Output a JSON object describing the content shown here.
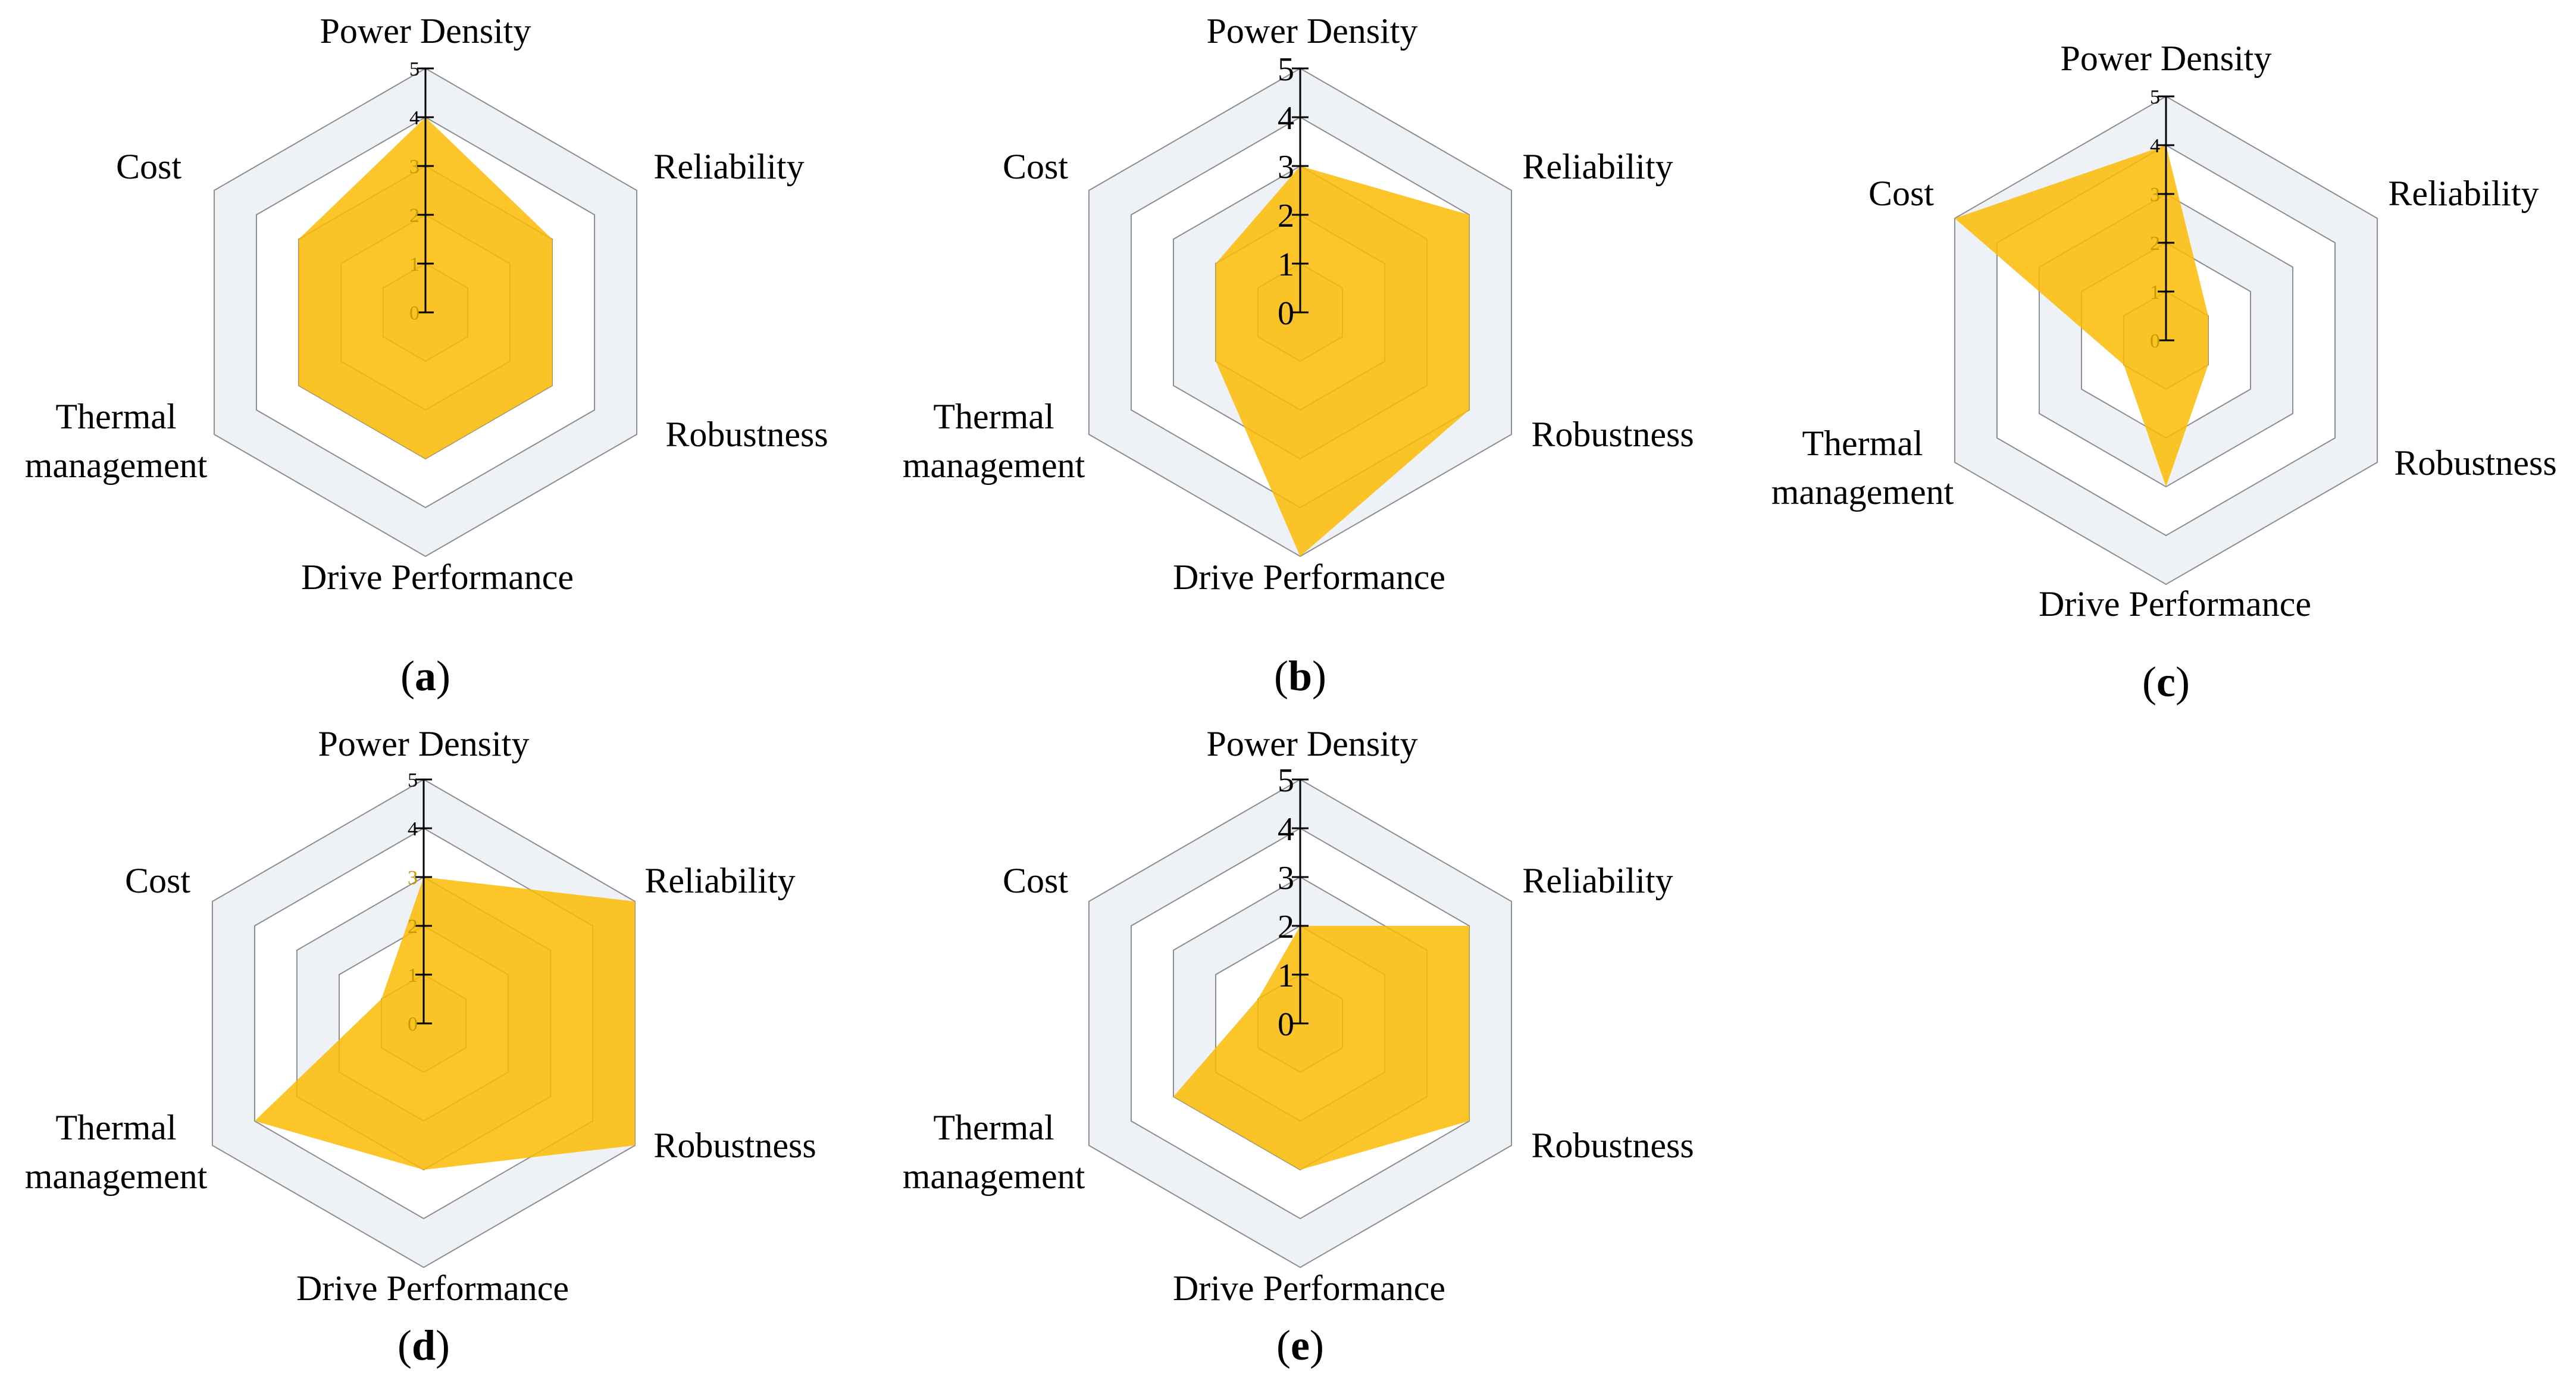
{
  "chart_data": [
    {
      "type": "radar",
      "panel": "a",
      "axes": [
        "Power Density",
        "Reliability",
        "Robustness",
        "Drive Performance",
        "Thermal management",
        "Cost"
      ],
      "values": [
        4,
        3,
        3,
        3,
        3,
        3
      ],
      "rlim": [
        0,
        5
      ],
      "ticks": [
        "0",
        "1",
        "2",
        "3",
        "4",
        "5"
      ]
    },
    {
      "type": "radar",
      "panel": "b",
      "axes": [
        "Power Density",
        "Reliability",
        "Robustness",
        "Drive Performance",
        "Thermal management",
        "Cost"
      ],
      "values": [
        3,
        4,
        4,
        5,
        2,
        2
      ],
      "rlim": [
        0,
        5
      ],
      "ticks": [
        "0",
        "1",
        "2",
        "3",
        "4",
        "5"
      ]
    },
    {
      "type": "radar",
      "panel": "c",
      "axes": [
        "Power Density",
        "Reliability",
        "Robustness",
        "Drive Performance",
        "Thermal management",
        "Cost"
      ],
      "values": [
        4,
        1,
        1,
        3,
        1,
        5
      ],
      "rlim": [
        0,
        5
      ],
      "ticks": [
        "0",
        "1",
        "2",
        "3",
        "4",
        "5"
      ]
    },
    {
      "type": "radar",
      "panel": "d",
      "axes": [
        "Power Density",
        "Reliability",
        "Robustness",
        "Drive Performance",
        "Thermal management",
        "Cost"
      ],
      "values": [
        3,
        5,
        5,
        3,
        4,
        1
      ],
      "rlim": [
        0,
        5
      ],
      "ticks": [
        "0",
        "1",
        "2",
        "3",
        "4",
        "5"
      ]
    },
    {
      "type": "radar",
      "panel": "e",
      "axes": [
        "Power Density",
        "Reliability",
        "Robustness",
        "Drive Performance",
        "Thermal management",
        "Cost"
      ],
      "values": [
        2,
        4,
        4,
        3,
        3,
        1
      ],
      "rlim": [
        0,
        5
      ],
      "ticks": [
        "0",
        "1",
        "2",
        "3",
        "4",
        "5"
      ]
    }
  ],
  "colors": {
    "fill": "#FBBC05",
    "ring": "#EEF1F6",
    "grid": "#8E8E8E",
    "axis": "#000000",
    "tick_text_small": "#C89A00"
  }
}
